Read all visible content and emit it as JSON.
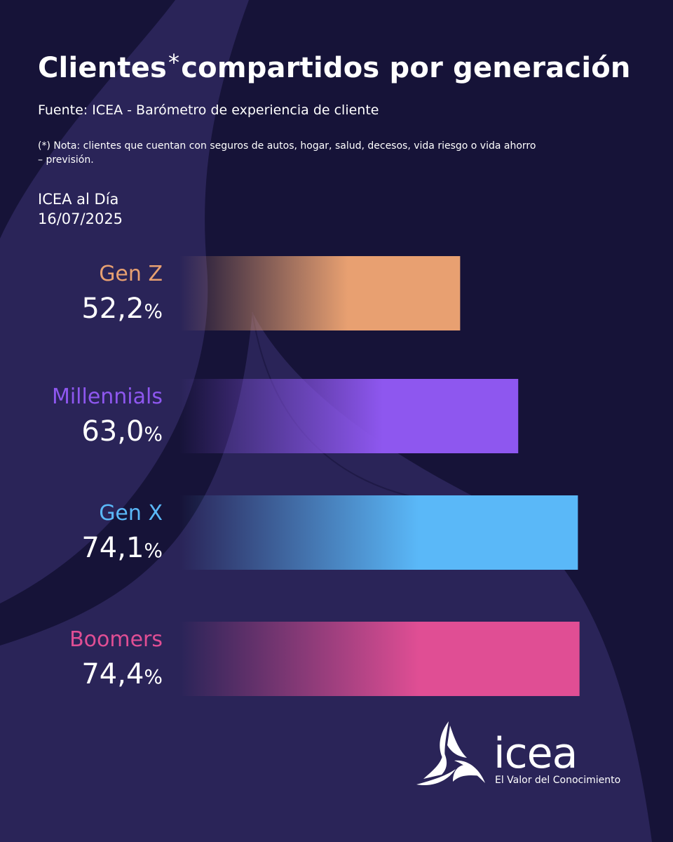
{
  "header": {
    "title_main": "Clientes",
    "title_asterisk": "*",
    "title_rest": "compartidos por generación",
    "source": "Fuente: ICEA - Barómetro de experiencia de cliente",
    "note": "(*) Nota: clientes que cuentan con seguros de autos, hogar, salud, decesos, vida riesgo o vida ahorro – previsión.",
    "edition_line1": "ICEA al Día",
    "edition_line2": "16/07/2025"
  },
  "chart_data": {
    "type": "bar",
    "orientation": "horizontal",
    "title": "Clientes* compartidos por generación",
    "categories": [
      "Gen Z",
      "Millennials",
      "Gen X",
      "Boomers"
    ],
    "values": [
      52.2,
      63.0,
      74.1,
      74.4
    ],
    "value_labels": [
      "52,2",
      "63,0",
      "74,1",
      "74,4"
    ],
    "unit": "%",
    "colors": [
      "#E8A071",
      "#8E57EF",
      "#5AB8F8",
      "#E04E94"
    ],
    "grid": false,
    "legend": "none"
  },
  "logo": {
    "wordmark": "icea",
    "tagline": "El Valor del Conocimiento",
    "icon": "icea-triskelion-icon"
  },
  "colors": {
    "background": "#161338",
    "shape": "#2A2458",
    "text": "#FFFFFF"
  }
}
